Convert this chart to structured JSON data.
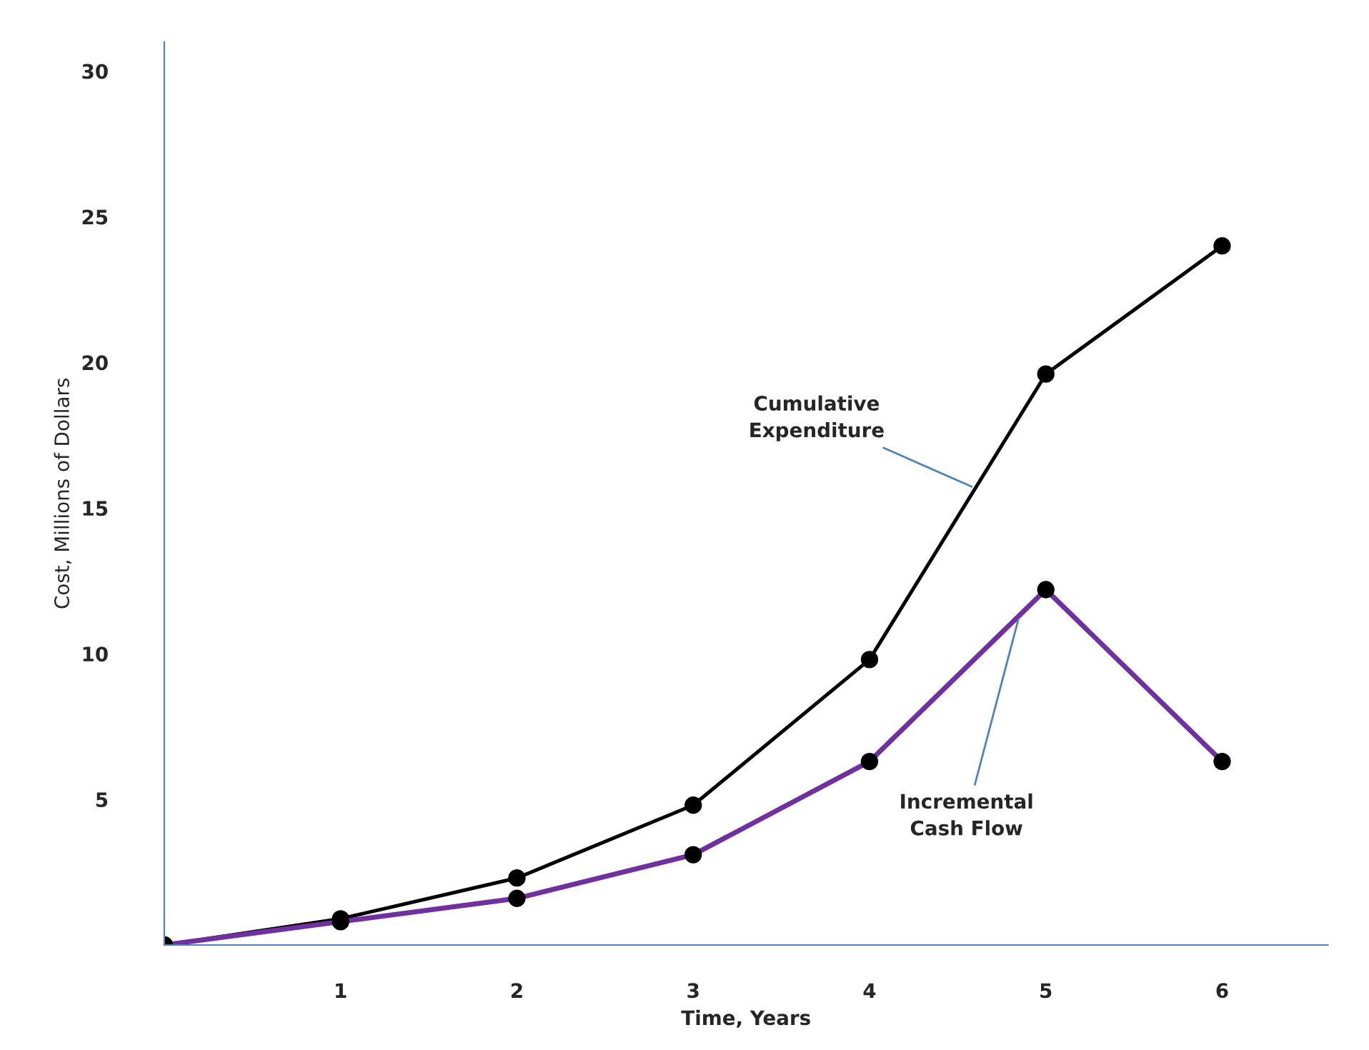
{
  "chart_data": {
    "type": "line",
    "xlabel": "Time, Years",
    "ylabel": "Cost, Millions of Dollars",
    "x": [
      0,
      1,
      2,
      3,
      4,
      5,
      6
    ],
    "series": [
      {
        "color": "#000000",
        "values": [
          0,
          0.9,
          2.3,
          4.8,
          9.8,
          19.6,
          24.0
        ]
      },
      {
        "color": "#7030a0",
        "values": [
          0,
          0.8,
          1.6,
          3.1,
          6.3,
          12.2,
          6.3
        ]
      }
    ],
    "xlim": [
      0,
      6.6
    ],
    "ylim": [
      0,
      31
    ],
    "xticks": [
      1,
      2,
      3,
      4,
      5,
      6
    ],
    "yticks": [
      5,
      10,
      15,
      20,
      25,
      30
    ],
    "marker": "circle",
    "line_style": "solid",
    "grid": false,
    "legend": false,
    "annotations": [
      {
        "text": "Cumulative\nExpenditure",
        "x": 4.6,
        "y": 15.68
      },
      {
        "text": "Incremental\nCash Flow",
        "x": 4.85,
        "y": 11.315
      }
    ]
  }
}
